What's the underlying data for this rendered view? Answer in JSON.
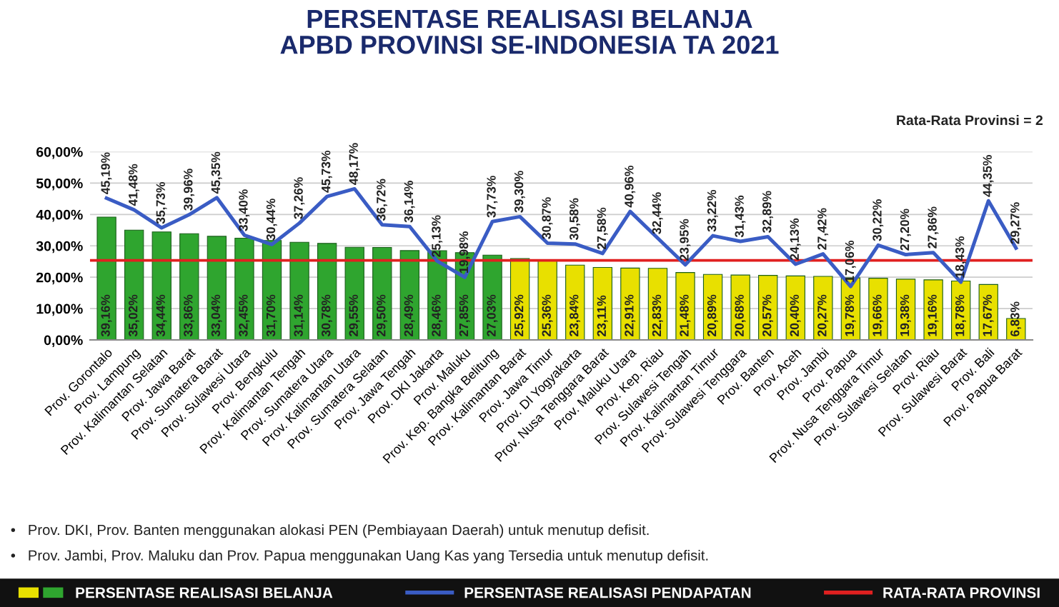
{
  "chart_data": {
    "type": "bar",
    "title": "PERSENTASE REALISASI BELANJA\nAPBD PROVINSI SE-INDONESIA TA 2021",
    "categories": [
      "Prov. Gorontalo",
      "Prov. Lampung",
      "Prov. Kalimantan Selatan",
      "Prov. Jawa Barat",
      "Prov. Sumatera Barat",
      "Prov. Sulawesi Utara",
      "Prov. Bengkulu",
      "Prov. Kalimantan Tengah",
      "Prov. Sumatera Utara",
      "Prov. Kalimantan Utara",
      "Prov. Sumatera Selatan",
      "Prov. Jawa Tengah",
      "Prov. DKI Jakarta",
      "Prov. Maluku",
      "Prov. Kep. Bangka Belitung",
      "Prov. Kalimantan Barat",
      "Prov. Jawa Timur",
      "Prov. DI Yogyakarta",
      "Prov. Nusa Tenggara Barat",
      "Prov. Maluku Utara",
      "Prov. Kep. Riau",
      "Prov. Sulawesi Tengah",
      "Prov. Kalimantan Timur",
      "Prov. Sulawesi Tenggara",
      "Prov. Banten",
      "Prov. Aceh",
      "Prov. Jambi",
      "Prov. Papua",
      "Prov. Nusa Tenggara Timur",
      "Prov. Sulawesi Selatan",
      "Prov. Riau",
      "Prov. Sulawesi Barat",
      "Prov. Bali",
      "Prov. Papua Barat"
    ],
    "series": [
      {
        "name": "PERSENTASE REALISASI BELANJA",
        "colors": [
          "#2fa52f",
          "#2fa52f",
          "#2fa52f",
          "#2fa52f",
          "#2fa52f",
          "#2fa52f",
          "#2fa52f",
          "#2fa52f",
          "#2fa52f",
          "#2fa52f",
          "#2fa52f",
          "#2fa52f",
          "#2fa52f",
          "#2fa52f",
          "#2fa52f",
          "#e8e000",
          "#e8e000",
          "#e8e000",
          "#e8e000",
          "#e8e000",
          "#e8e000",
          "#e8e000",
          "#e8e000",
          "#e8e000",
          "#e8e000",
          "#e8e000",
          "#e8e000",
          "#e8e000",
          "#e8e000",
          "#e8e000",
          "#e8e000",
          "#e8e000",
          "#e8e000",
          "#e8e000"
        ],
        "values": [
          39.16,
          35.02,
          34.44,
          33.86,
          33.04,
          32.45,
          31.7,
          31.14,
          30.78,
          29.55,
          29.5,
          28.49,
          28.46,
          27.85,
          27.03,
          25.92,
          25.36,
          23.84,
          23.11,
          22.91,
          22.83,
          21.48,
          20.89,
          20.68,
          20.57,
          20.4,
          20.27,
          19.78,
          19.66,
          19.38,
          19.16,
          18.78,
          17.67,
          6.83
        ],
        "value_labels": [
          "39,16%",
          "35,02%",
          "34,44%",
          "33,86%",
          "33,04%",
          "32,45%",
          "31,70%",
          "31,14%",
          "30,78%",
          "29,55%",
          "29,50%",
          "28,49%",
          "28,46%",
          "27,85%",
          "27,03%",
          "25,92%",
          "25,36%",
          "23,84%",
          "23,11%",
          "22,91%",
          "22,83%",
          "21,48%",
          "20,89%",
          "20,68%",
          "20,57%",
          "20,40%",
          "20,27%",
          "19,78%",
          "19,66%",
          "19,38%",
          "19,16%",
          "18,78%",
          "17,67%",
          "6,83%"
        ]
      },
      {
        "name": "PERSENTASE REALISASI PENDAPATAN",
        "type": "line",
        "color": "#3a5cc4",
        "values": [
          45.19,
          41.48,
          35.73,
          39.96,
          45.35,
          33.4,
          30.44,
          37.26,
          45.73,
          48.17,
          36.72,
          36.14,
          25.13,
          19.98,
          37.73,
          39.3,
          30.87,
          30.58,
          27.58,
          40.96,
          32.44,
          23.95,
          33.22,
          31.43,
          32.89,
          24.13,
          27.42,
          17.06,
          30.22,
          27.2,
          27.86,
          18.43,
          44.35,
          29.27
        ],
        "value_labels": [
          "45,19%",
          "41,48%",
          "35,73%",
          "39,96%",
          "45,35%",
          "33,40%",
          "30,44%",
          "37,26%",
          "45,73%",
          "48,17%",
          "36,72%",
          "36,14%",
          "25,13%",
          "19,98%",
          "37,73%",
          "39,30%",
          "30,87%",
          "30,58%",
          "27,58%",
          "40,96%",
          "32,44%",
          "23,95%",
          "33,22%",
          "31,43%",
          "32,89%",
          "24,13%",
          "27,42%",
          "17,06%",
          "30,22%",
          "27,20%",
          "27,86%",
          "18,43%",
          "44,35%",
          "29,27%"
        ]
      }
    ],
    "ylim": [
      0,
      60
    ],
    "yticks": [
      {
        "value": 0,
        "label": "0,00%"
      },
      {
        "value": 10,
        "label": "10,00%"
      },
      {
        "value": 20,
        "label": "20,00%"
      },
      {
        "value": 30,
        "label": "30,00%"
      },
      {
        "value": 40,
        "label": "40,00%"
      },
      {
        "value": 50,
        "label": "50,00%"
      },
      {
        "value": 60,
        "label": "60,00%"
      }
    ],
    "grid": "y",
    "ref_lines": [
      {
        "axis": "y",
        "value": 25.35,
        "label": "RATA-RATA PROVINSI",
        "color": "#e02020"
      }
    ],
    "legend": "bottom",
    "marker": "none",
    "line_style": "solid",
    "annotations": [
      "Rata-Rata Provinsi = 2",
      "•   Prov. DKI, Prov. Banten menggunakan alokasi PEN (Pembiayaan Daerah) untuk menutup defisit.",
      "•   Prov. Jambi, Prov. Maluku dan Prov. Papua menggunakan Uang Kas yang Tersedia untuk menutup defisit."
    ]
  }
}
